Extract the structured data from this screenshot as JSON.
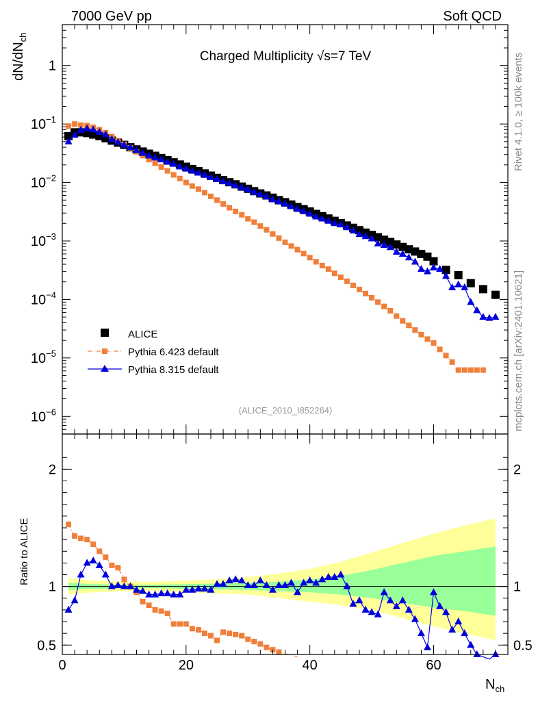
{
  "header": {
    "left": "7000 GeV pp",
    "right": "Soft QCD"
  },
  "side_text": {
    "rivet": "Rivet 4.1.0, ≥ 100k events",
    "mcplots": "mcplots.cern.ch [arXiv:2401.10621]"
  },
  "colors": {
    "alice": "#000000",
    "pythia6": "#f07f3a",
    "pythia8": "#0000dd",
    "band_outer": "#ffff99",
    "band_inner": "#99ff99"
  },
  "chart_data": [
    {
      "type": "scatter",
      "title": "Charged Multiplicity √s=7 TeV",
      "ylabel_main": "dN/dN",
      "ylabel_sub": "ch",
      "yscale": "log",
      "xlim": [
        0,
        72
      ],
      "ylim": [
        5e-07,
        5
      ],
      "yticks": [
        {
          "value": 1e-06,
          "base": "10",
          "exp": "−6"
        },
        {
          "value": 1e-05,
          "base": "10",
          "exp": "−5"
        },
        {
          "value": 0.0001,
          "base": "10",
          "exp": "−4"
        },
        {
          "value": 0.001,
          "base": "10",
          "exp": "−3"
        },
        {
          "value": 0.01,
          "base": "10",
          "exp": "−2"
        },
        {
          "value": 0.1,
          "base": "10",
          "exp": "−1"
        },
        {
          "value": 1,
          "base": "1",
          "exp": ""
        }
      ],
      "analysis_label": "(ALICE_2010_I852264)",
      "legend": [
        {
          "key": "alice",
          "label": "ALICE"
        },
        {
          "key": "pythia6",
          "label": "Pythia 6.423 default"
        },
        {
          "key": "pythia8",
          "label": "Pythia 8.315 default"
        }
      ],
      "series": [
        {
          "name": "ALICE",
          "key": "alice",
          "x": [
            1,
            2,
            3,
            4,
            5,
            6,
            7,
            8,
            9,
            10,
            11,
            12,
            13,
            14,
            15,
            16,
            17,
            18,
            19,
            20,
            21,
            22,
            23,
            24,
            25,
            26,
            27,
            28,
            29,
            30,
            31,
            32,
            33,
            34,
            35,
            36,
            37,
            38,
            39,
            40,
            41,
            42,
            43,
            44,
            45,
            46,
            47,
            48,
            49,
            50,
            51,
            52,
            53,
            54,
            55,
            56,
            57,
            58,
            59,
            60,
            62,
            64,
            66,
            68,
            70
          ],
          "y": [
            0.062,
            0.072,
            0.072,
            0.07,
            0.066,
            0.062,
            0.057,
            0.052,
            0.048,
            0.044,
            0.04,
            0.0368,
            0.0338,
            0.0311,
            0.0286,
            0.0262,
            0.0241,
            0.0221,
            0.0203,
            0.0186,
            0.017,
            0.0156,
            0.0143,
            0.0131,
            0.012,
            0.011,
            0.0101,
            0.0093,
            0.0085,
            0.0078,
            0.0071,
            0.0065,
            0.006,
            0.0055,
            0.005,
            0.0046,
            0.0042,
            0.0038,
            0.0035,
            0.0032,
            0.0029,
            0.00265,
            0.00242,
            0.00221,
            0.00202,
            0.00184,
            0.00168,
            0.00153,
            0.00139,
            0.00127,
            0.00116,
            0.00105,
            0.00096,
            0.00087,
            0.00079,
            0.00072,
            0.00066,
            0.0006,
            0.00054,
            0.00045,
            0.00032,
            0.00026,
            0.00019,
            0.00015,
            0.00012
          ]
        },
        {
          "name": "Pythia 6.423 default",
          "key": "pythia6",
          "x": [
            1,
            2,
            3,
            4,
            5,
            6,
            7,
            8,
            9,
            10,
            11,
            12,
            13,
            14,
            15,
            16,
            17,
            18,
            19,
            20,
            21,
            22,
            23,
            24,
            25,
            26,
            27,
            28,
            29,
            30,
            31,
            32,
            33,
            34,
            35,
            36,
            37,
            38,
            39,
            40,
            41,
            42,
            43,
            44,
            45,
            46,
            47,
            48,
            49,
            50,
            51,
            52,
            53,
            54,
            55,
            56,
            57,
            58,
            59,
            60,
            61,
            62,
            63,
            64,
            65,
            66,
            67,
            68
          ],
          "y": [
            0.092,
            0.1,
            0.096,
            0.094,
            0.088,
            0.08,
            0.071,
            0.061,
            0.052,
            0.045,
            0.039,
            0.0335,
            0.0288,
            0.0246,
            0.0213,
            0.0184,
            0.0158,
            0.0135,
            0.0117,
            0.01,
            0.0087,
            0.0077,
            0.0067,
            0.0058,
            0.005,
            0.0043,
            0.0037,
            0.0032,
            0.0028,
            0.0024,
            0.0021,
            0.0018,
            0.00155,
            0.00132,
            0.00112,
            0.00095,
            0.00082,
            0.00071,
            0.00061,
            0.00052,
            0.00044,
            0.00038,
            0.00033,
            0.00028,
            0.00024,
            0.000205,
            0.000174,
            0.000148,
            0.000126,
            0.000107,
            9e-05,
            7.6e-05,
            6.4e-05,
            5.2e-05,
            4.3e-05,
            3.6e-05,
            3e-05,
            2.5e-05,
            2.1e-05,
            1.8e-05,
            1.4e-05,
            1.1e-05,
            8.5e-06,
            6.2e-06,
            6.2e-06,
            6.2e-06,
            6.2e-06,
            6.2e-06
          ],
          "note": "ratio values also plotted below"
        },
        {
          "name": "Pythia 8.315 default",
          "key": "pythia8",
          "x": [
            1,
            2,
            3,
            4,
            5,
            6,
            7,
            8,
            9,
            10,
            11,
            12,
            13,
            14,
            15,
            16,
            17,
            18,
            19,
            20,
            21,
            22,
            23,
            24,
            25,
            26,
            27,
            28,
            29,
            30,
            31,
            32,
            33,
            34,
            35,
            36,
            37,
            38,
            39,
            40,
            41,
            42,
            43,
            44,
            45,
            46,
            47,
            48,
            49,
            50,
            51,
            52,
            53,
            54,
            55,
            56,
            57,
            58,
            59,
            60,
            61,
            62,
            63,
            64,
            65,
            66,
            67,
            68,
            69,
            70
          ],
          "y": [
            0.05,
            0.065,
            0.079,
            0.084,
            0.08,
            0.073,
            0.066,
            0.055,
            0.049,
            0.044,
            0.04,
            0.0355,
            0.0318,
            0.0287,
            0.0265,
            0.0246,
            0.0224,
            0.0207,
            0.0186,
            0.0171,
            0.0158,
            0.0146,
            0.0134,
            0.0123,
            0.0113,
            0.0104,
            0.0097,
            0.0089,
            0.0082,
            0.0076,
            0.0068,
            0.0063,
            0.0057,
            0.0051,
            0.0047,
            0.0043,
            0.0039,
            0.0035,
            0.0032,
            0.0029,
            0.0026,
            0.0024,
            0.0022,
            0.002,
            0.0019,
            0.0017,
            0.0015,
            0.0013,
            0.0012,
            0.0011,
            0.0009,
            0.00085,
            0.00078,
            0.00065,
            0.0006,
            0.00052,
            0.00044,
            0.00033,
            0.0003,
            0.00035,
            0.00033,
            0.00025,
            0.00016,
            0.00018,
            0.00016,
            9e-05,
            6.5e-05,
            5e-05,
            4.8e-05,
            5e-05
          ]
        }
      ]
    },
    {
      "type": "scatter",
      "ylabel": "Ratio to ALICE",
      "yscale": "linear",
      "xlabel_main": "N",
      "xlabel_sub": "ch",
      "xlim": [
        0,
        72
      ],
      "ylim": [
        0.42,
        2.3
      ],
      "xticks": [
        0,
        20,
        40,
        60
      ],
      "yticks": [
        0.5,
        1,
        2
      ],
      "band": {
        "x": [
          1,
          5,
          10,
          15,
          20,
          25,
          30,
          35,
          40,
          45,
          50,
          55,
          60,
          65,
          70
        ],
        "outer_lo": [
          0.93,
          0.95,
          0.96,
          0.96,
          0.95,
          0.94,
          0.93,
          0.9,
          0.87,
          0.84,
          0.8,
          0.73,
          0.66,
          0.6,
          0.54
        ],
        "outer_hi": [
          1.07,
          1.05,
          1.04,
          1.04,
          1.05,
          1.06,
          1.08,
          1.11,
          1.15,
          1.21,
          1.29,
          1.37,
          1.45,
          1.52,
          1.58
        ],
        "inner_lo": [
          0.97,
          0.98,
          0.985,
          0.985,
          0.98,
          0.975,
          0.97,
          0.96,
          0.95,
          0.93,
          0.9,
          0.86,
          0.82,
          0.79,
          0.75
        ],
        "inner_hi": [
          1.03,
          1.02,
          1.015,
          1.015,
          1.02,
          1.025,
          1.03,
          1.04,
          1.06,
          1.09,
          1.14,
          1.2,
          1.26,
          1.3,
          1.34
        ]
      },
      "series": [
        {
          "name": "Pythia 6.423 default",
          "key": "pythia6",
          "x": [
            1,
            2,
            3,
            4,
            5,
            6,
            7,
            8,
            9,
            10,
            11,
            12,
            13,
            14,
            15,
            16,
            17,
            18,
            19,
            20,
            21,
            22,
            23,
            24,
            25,
            26,
            27,
            28,
            29,
            30,
            31,
            32,
            33,
            34,
            35,
            38
          ],
          "y": [
            1.53,
            1.43,
            1.41,
            1.4,
            1.36,
            1.3,
            1.25,
            1.18,
            1.16,
            1.06,
            1.0,
            0.95,
            0.87,
            0.84,
            0.8,
            0.79,
            0.77,
            0.68,
            0.68,
            0.68,
            0.64,
            0.63,
            0.6,
            0.58,
            0.54,
            0.61,
            0.6,
            0.59,
            0.58,
            0.55,
            0.53,
            0.51,
            0.48,
            0.46,
            0.44,
            0.4
          ]
        },
        {
          "name": "Pythia 8.315 default",
          "key": "pythia8",
          "x": [
            1,
            2,
            3,
            4,
            5,
            6,
            7,
            8,
            9,
            10,
            11,
            12,
            13,
            14,
            15,
            16,
            17,
            18,
            19,
            20,
            21,
            22,
            23,
            24,
            25,
            26,
            27,
            28,
            29,
            30,
            31,
            32,
            33,
            34,
            35,
            36,
            37,
            38,
            39,
            40,
            41,
            42,
            43,
            44,
            45,
            46,
            47,
            48,
            49,
            50,
            51,
            52,
            53,
            54,
            55,
            56,
            57,
            58,
            59,
            60,
            61,
            62,
            63,
            64,
            65,
            66,
            67,
            68,
            69,
            70
          ],
          "y": [
            0.8,
            0.88,
            1.1,
            1.2,
            1.22,
            1.18,
            1.1,
            1.0,
            1.01,
            1.0,
            1.0,
            0.97,
            0.96,
            0.93,
            0.93,
            0.94,
            0.94,
            0.93,
            0.93,
            0.97,
            0.97,
            0.98,
            0.98,
            0.97,
            1.02,
            1.02,
            1.05,
            1.06,
            1.05,
            1.01,
            1.01,
            1.05,
            1.01,
            0.97,
            1.01,
            1.01,
            1.03,
            0.95,
            1.03,
            1.05,
            1.03,
            1.06,
            1.08,
            1.08,
            1.1,
            1.0,
            0.85,
            0.88,
            0.8,
            0.78,
            0.76,
            0.95,
            0.88,
            0.83,
            0.88,
            0.8,
            0.72,
            0.6,
            0.48,
            0.95,
            0.83,
            0.78,
            0.63,
            0.7,
            0.6,
            0.5,
            0.42,
            0.4,
            0.38,
            0.42
          ]
        }
      ]
    }
  ]
}
